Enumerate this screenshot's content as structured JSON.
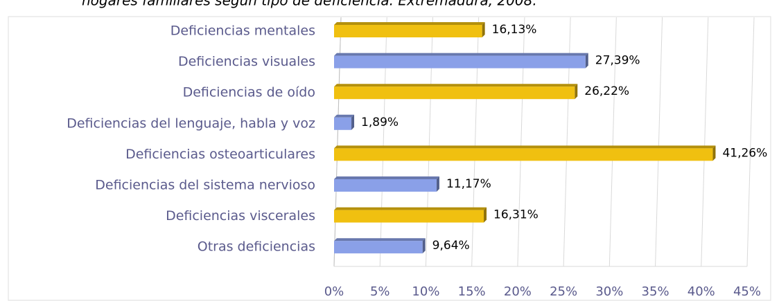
{
  "chart_data": {
    "type": "bar",
    "orientation": "horizontal",
    "title": "hogares familiares según tipo de deficiencia. Extremadura, 2008.",
    "categories": [
      "Deficiencias mentales",
      "Deficiencias visuales",
      "Deficiencias de oído",
      "Deficiencias del lenguaje, habla y voz",
      "Deficiencias osteoarticulares",
      "Deficiencias del sistema nervioso",
      "Deficiencias viscerales",
      "Otras deficiencias"
    ],
    "values": [
      16.13,
      27.39,
      26.22,
      1.89,
      41.26,
      11.17,
      16.31,
      9.64
    ],
    "value_labels": [
      "16,13%",
      "27,39%",
      "26,22%",
      "1,89%",
      "41,26%",
      "11,17%",
      "16,31%",
      "9,64%"
    ],
    "colors": [
      "#f0c010",
      "#8aa0e8",
      "#f0c010",
      "#8aa0e8",
      "#f0c010",
      "#8aa0e8",
      "#f0c010",
      "#8aa0e8"
    ],
    "xlim": [
      0,
      45
    ],
    "xticks": [
      {
        "value": 0,
        "label": "0%"
      },
      {
        "value": 5,
        "label": "5%"
      },
      {
        "value": 10,
        "label": "10%"
      },
      {
        "value": 15,
        "label": "15%"
      },
      {
        "value": 20,
        "label": "20%"
      },
      {
        "value": 25,
        "label": "25%"
      },
      {
        "value": 30,
        "label": "30%"
      },
      {
        "value": 35,
        "label": "35%"
      },
      {
        "value": 40,
        "label": "40%"
      },
      {
        "value": 45,
        "label": "45%"
      }
    ],
    "grid": true
  }
}
